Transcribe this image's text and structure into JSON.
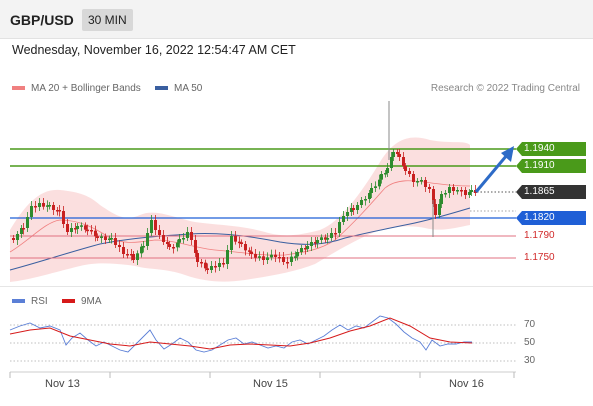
{
  "header": {
    "pair": "GBP/USD",
    "timeframe": "30 MIN"
  },
  "timestamp": "Wednesday, November 16, 2022 12:54:47 AM CET",
  "legend": {
    "ma_bb": "MA 20 + Bollinger Bands",
    "ma50": "MA 50",
    "ma_bb_color": "#f08080",
    "ma50_color": "#3a5fa0"
  },
  "credit": "Research © 2022 Trading Central",
  "levels": {
    "r2": "1.1940",
    "r1": "1.1910",
    "last": "1.1865",
    "pivot": "1.1820",
    "s1": "1.1790",
    "s2": "1.1750"
  },
  "rsi": {
    "legend_rsi": "RSI",
    "legend_ma": "9MA",
    "rsi_color": "#5b7fd6",
    "ma_color": "#d61a1a",
    "levels": [
      "70",
      "50",
      "30"
    ]
  },
  "x_labels": [
    "Nov 13",
    "Nov 15",
    "Nov 16"
  ],
  "colors": {
    "up": "#2e8b2e",
    "down": "#c82020",
    "resistance": "#4a9a1a",
    "pivot": "#1f5fd6",
    "support": "#e07080",
    "last": "#333333"
  }
}
